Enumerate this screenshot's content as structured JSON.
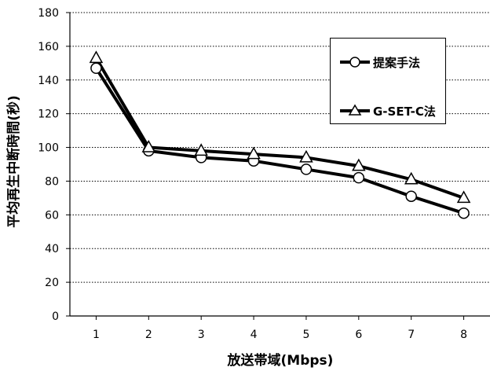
{
  "chart_data": {
    "type": "line",
    "x": [
      1,
      2,
      3,
      4,
      5,
      6,
      7,
      8
    ],
    "series": [
      {
        "name": "提案手法",
        "marker": "circle",
        "values": [
          147,
          98,
          94,
          92,
          87,
          82,
          71,
          61
        ]
      },
      {
        "name": "G-SET-C法",
        "marker": "triangle",
        "values": [
          153,
          100,
          98,
          96,
          94,
          89,
          81,
          70
        ]
      }
    ],
    "title": "",
    "xlabel": "放送帯域(Mbps)",
    "ylabel": "平均再生中断時間(秒)",
    "ylim": [
      0,
      180
    ],
    "yticks": [
      0,
      20,
      40,
      60,
      80,
      100,
      120,
      140,
      160,
      180
    ],
    "xticks": [
      1,
      2,
      3,
      4,
      5,
      6,
      7,
      8
    ],
    "grid": "horizontal-dotted",
    "legend": "top-right",
    "colors": {
      "line": "#000000",
      "marker_fill": "#ffffff"
    }
  }
}
